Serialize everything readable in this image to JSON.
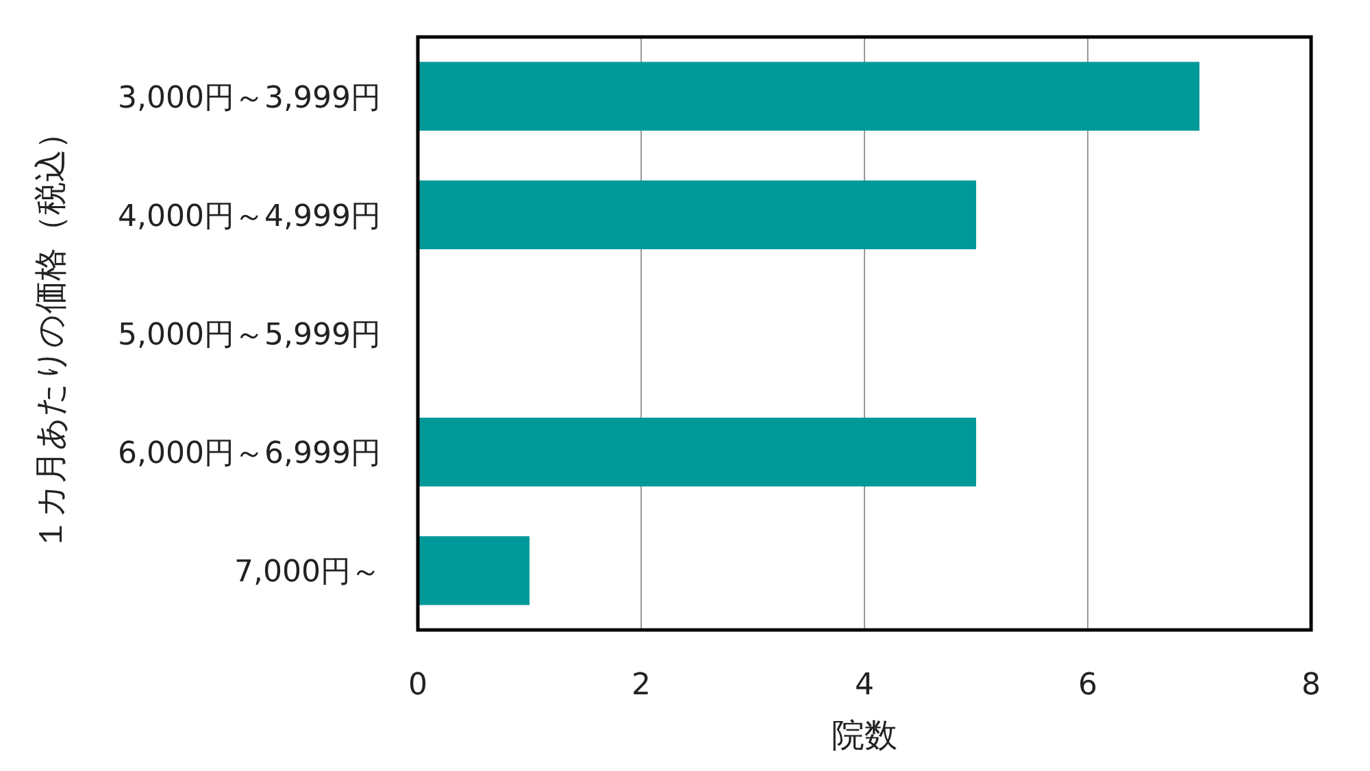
{
  "chart_data": {
    "type": "bar",
    "orientation": "horizontal",
    "categories": [
      "3,000円～3,999円",
      "4,000円～4,999円",
      "5,000円～5,999円",
      "6,000円～6,999円",
      "7,000円～"
    ],
    "values": [
      7,
      5,
      0,
      5,
      1
    ],
    "color": "#009999",
    "xlabel": "院数",
    "ylabel": "１カ月あたりの価格（税込）",
    "xlim": [
      0,
      8
    ],
    "xticks": [
      0,
      2,
      4,
      6,
      8
    ],
    "grid": "x"
  }
}
